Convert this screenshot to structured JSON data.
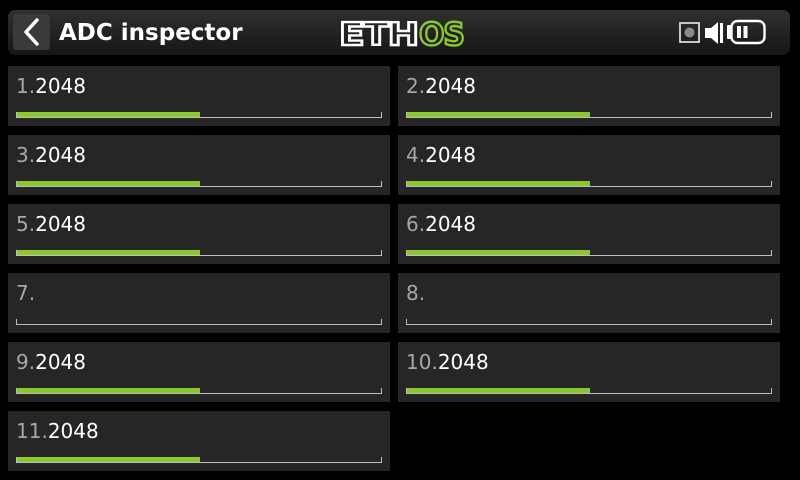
{
  "header": {
    "title": "ADC inspector",
    "logo": {
      "text": "ETHOS",
      "brand_colors": {
        "white": "#ffffff",
        "green": "#8bc72f"
      }
    },
    "icons": [
      "back-arrow-icon",
      "sd-card-icon",
      "speaker-icon",
      "battery-icon"
    ]
  },
  "colors": {
    "bar_fill": "#8bc72f",
    "cell_background": "#262626",
    "index_text": "#a7a7a7",
    "value_text": "#ffffff"
  },
  "channels": [
    {
      "index": "1.",
      "value": "2048",
      "level": 0.5
    },
    {
      "index": "2.",
      "value": "2048",
      "level": 0.5
    },
    {
      "index": "3.",
      "value": "2048",
      "level": 0.5
    },
    {
      "index": "4.",
      "value": "2048",
      "level": 0.5
    },
    {
      "index": "5.",
      "value": "2048",
      "level": 0.5
    },
    {
      "index": "6.",
      "value": "2048",
      "level": 0.5
    },
    {
      "index": "7.",
      "value": "",
      "level": 0
    },
    {
      "index": "8.",
      "value": "",
      "level": 0
    },
    {
      "index": "9.",
      "value": "2048",
      "level": 0.5
    },
    {
      "index": "10.",
      "value": "2048",
      "level": 0.5
    },
    {
      "index": "11.",
      "value": "2048",
      "level": 0.5
    }
  ]
}
